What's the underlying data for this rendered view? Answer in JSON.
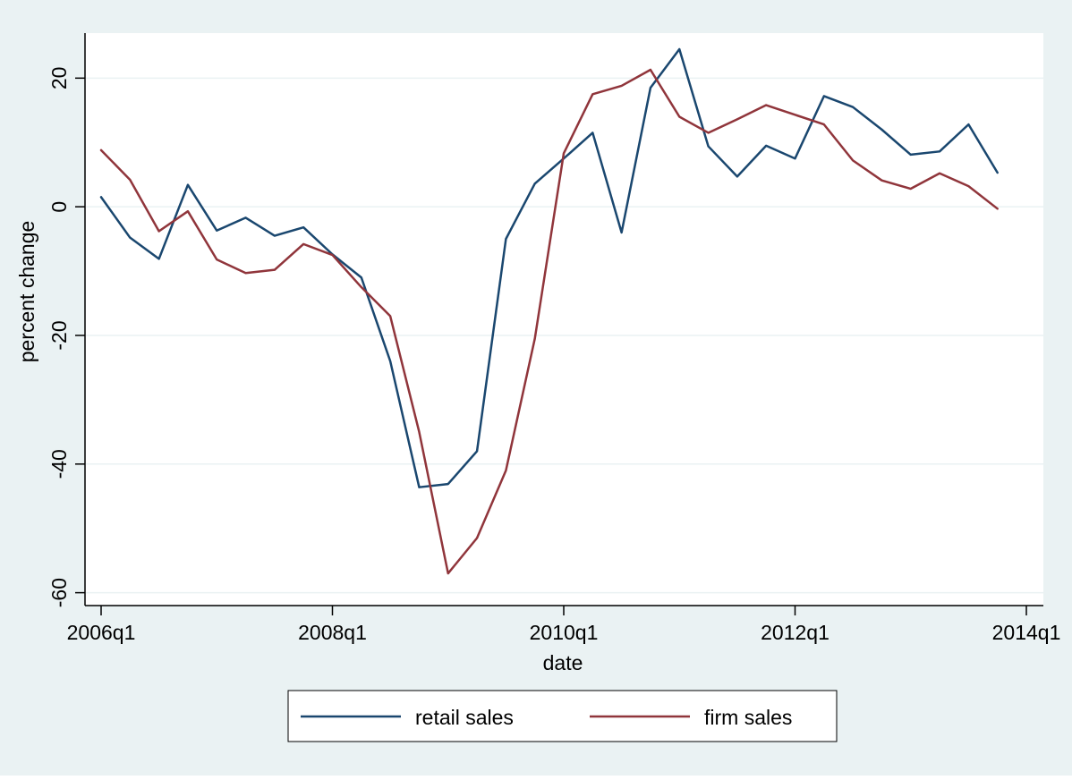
{
  "chart_data": {
    "type": "line",
    "xlabel": "date",
    "ylabel": "percent change",
    "x_ticks": [
      {
        "value": "2006q1",
        "label": "2006q1"
      },
      {
        "value": "2008q1",
        "label": "2008q1"
      },
      {
        "value": "2010q1",
        "label": "2010q1"
      },
      {
        "value": "2012q1",
        "label": "2012q1"
      },
      {
        "value": "2014q1",
        "label": "2014q1"
      }
    ],
    "y_ticks": [
      -60,
      -40,
      -20,
      0,
      20
    ],
    "xlim": [
      "2006q1",
      "2014q1"
    ],
    "ylim": [
      -62,
      27
    ],
    "grid": true,
    "legend_position": "bottom",
    "background_color": "#eaf2f3",
    "plot_background_color": "#ffffff",
    "gridline_color": "#eaf2f3",
    "x": [
      "2006q1",
      "2006q2",
      "2006q3",
      "2006q4",
      "2007q1",
      "2007q2",
      "2007q3",
      "2007q4",
      "2008q1",
      "2008q2",
      "2008q3",
      "2008q4",
      "2009q1",
      "2009q2",
      "2009q3",
      "2009q4",
      "2010q1",
      "2010q2",
      "2010q3",
      "2010q4",
      "2011q1",
      "2011q2",
      "2011q3",
      "2011q4",
      "2012q1",
      "2012q2",
      "2012q3",
      "2012q4",
      "2013q1",
      "2013q2",
      "2013q3",
      "2013q4"
    ],
    "series": [
      {
        "name": "retail sales",
        "color": "#1a476f",
        "values": [
          1.5,
          -4.8,
          -8.1,
          3.4,
          -3.7,
          -1.7,
          -4.5,
          -3.2,
          -7.4,
          -11,
          -24,
          -43.6,
          -43.1,
          -38,
          -5,
          3.6,
          7.5,
          11.5,
          -4,
          18.5,
          24.5,
          9.4,
          4.7,
          9.5,
          7.5,
          17.2,
          15.5,
          12,
          8.1,
          8.6,
          12.8,
          5.3
        ]
      },
      {
        "name": "firm sales",
        "color": "#90353b",
        "values": [
          8.8,
          4.2,
          -3.8,
          -0.7,
          -8.2,
          -10.3,
          -9.8,
          -5.8,
          -7.5,
          -12.5,
          -17,
          -35,
          -57,
          -51.5,
          -41,
          -20.5,
          8.3,
          17.5,
          18.8,
          21.3,
          14,
          11.5,
          13.6,
          15.8,
          14.3,
          12.8,
          7.2,
          4.1,
          2.8,
          5.2,
          3.2,
          -0.3
        ]
      }
    ]
  }
}
